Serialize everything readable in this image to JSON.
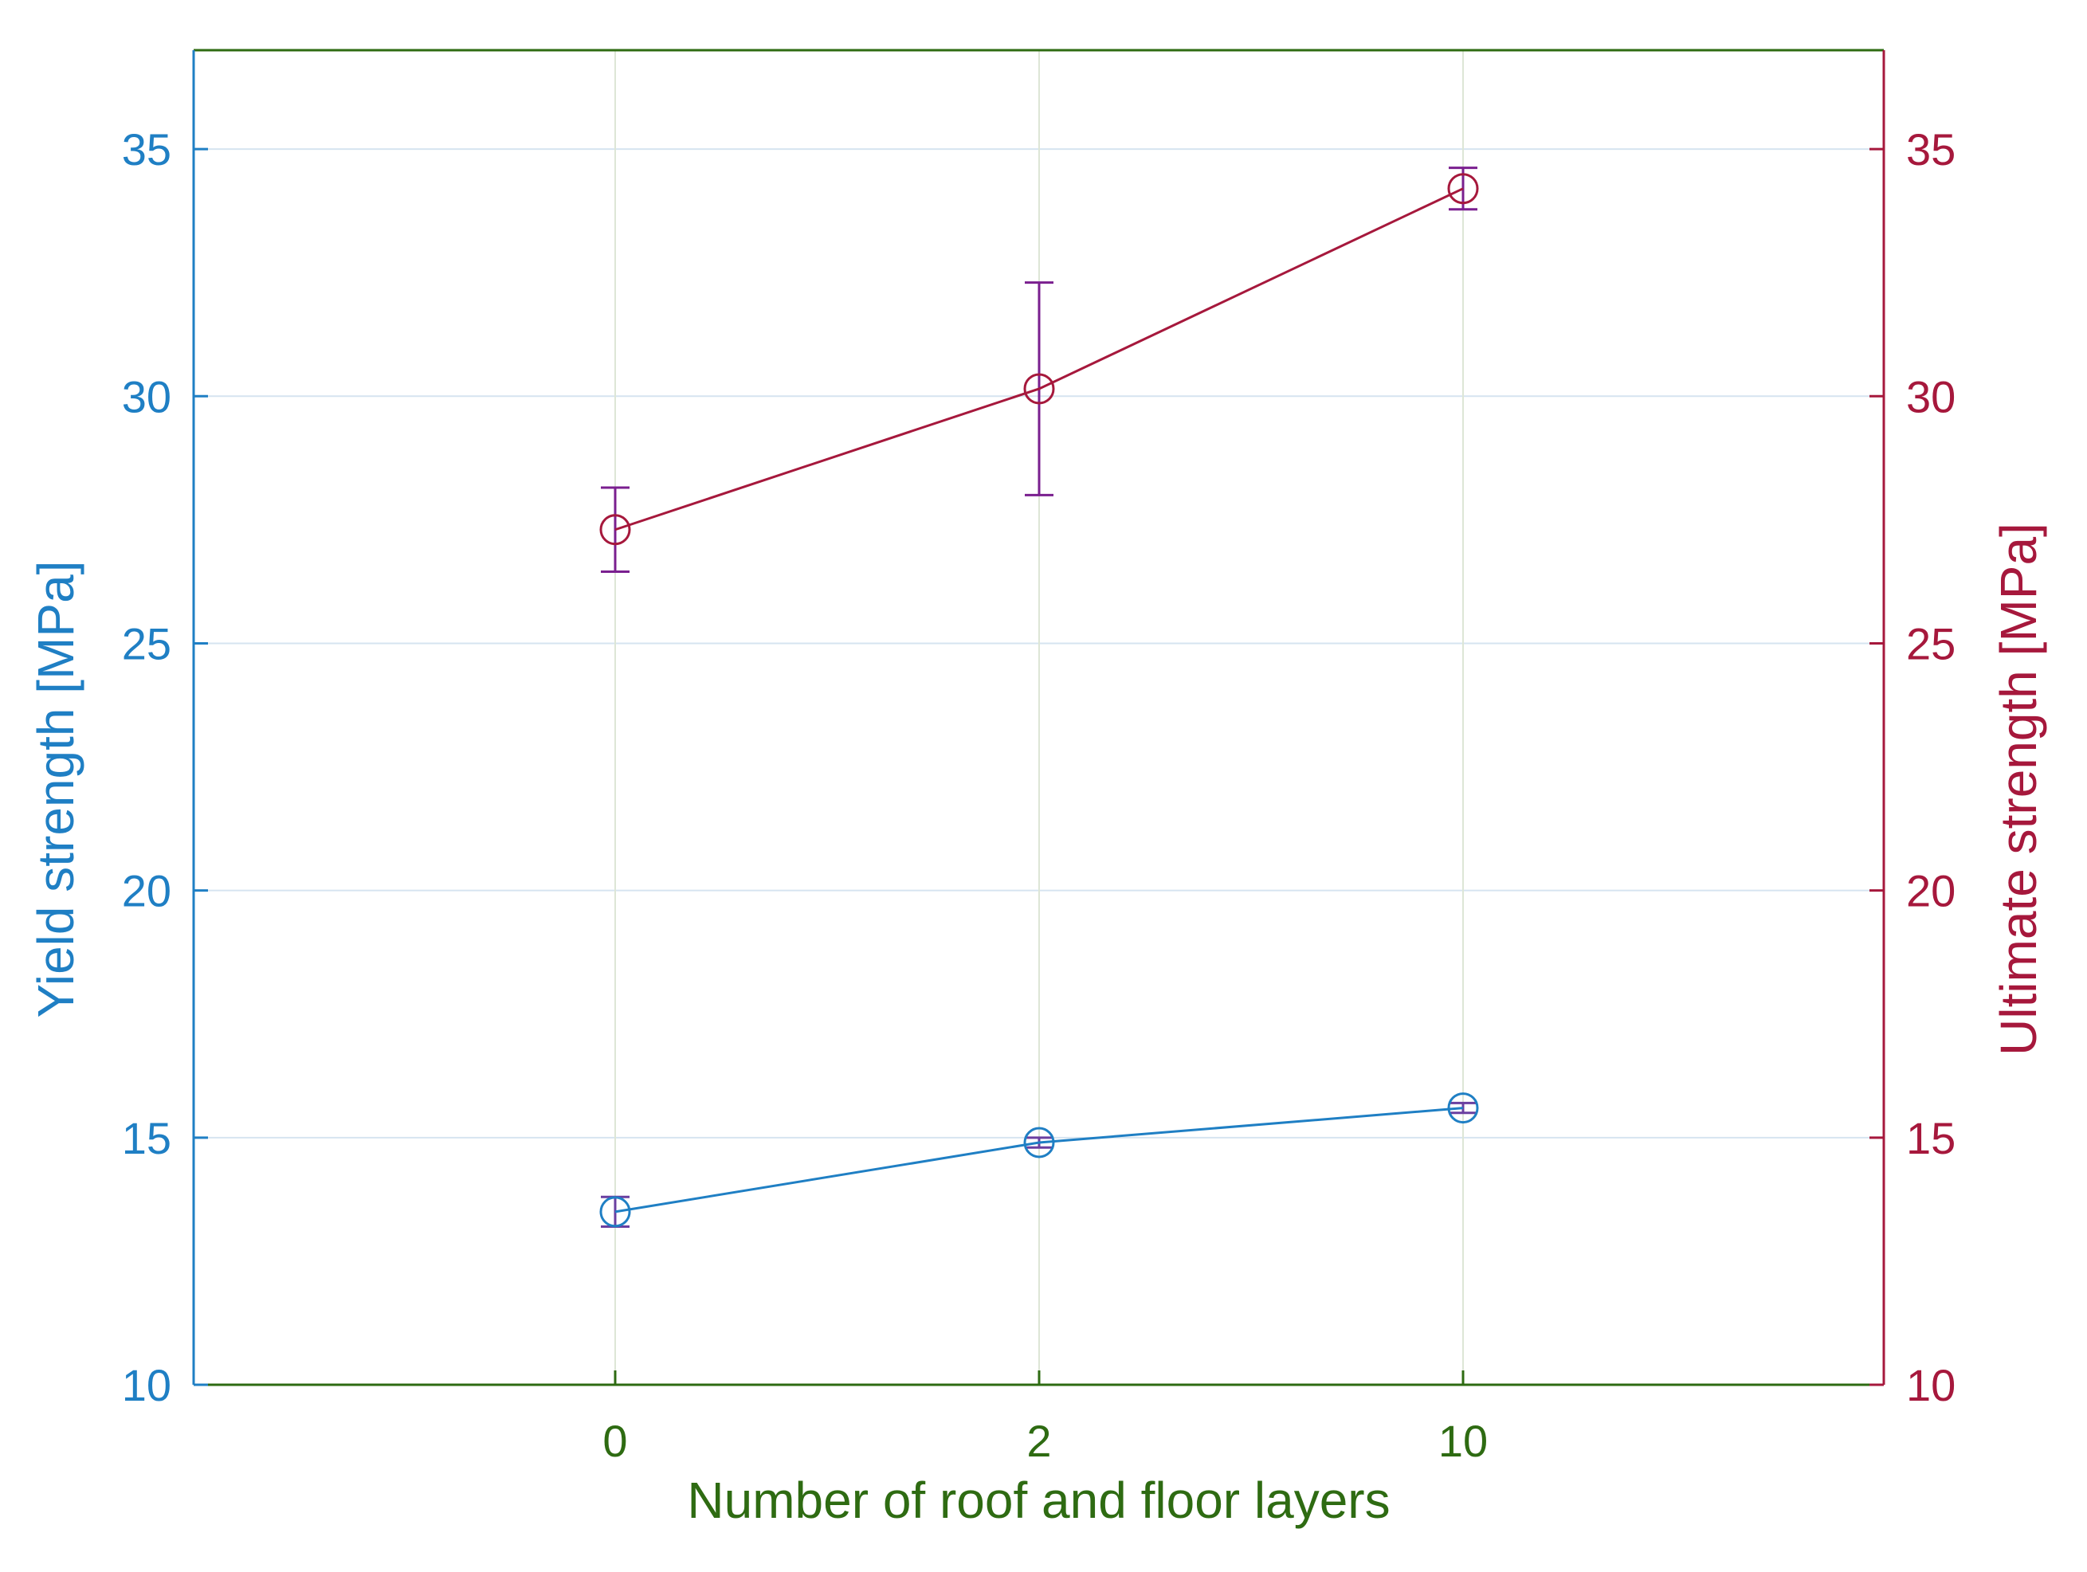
{
  "chart_data": {
    "type": "line",
    "title": "",
    "xlabel": "Number of roof and floor layers",
    "categories": [
      "0",
      "2",
      "10"
    ],
    "y_left": {
      "label": "Yield strength [MPa]",
      "range": [
        10,
        37
      ],
      "ticks": [
        10,
        15,
        20,
        25,
        30,
        35
      ],
      "color": "#1f7fc4"
    },
    "y_right": {
      "label": "Ultimate strength [MPa]",
      "range": [
        10,
        37
      ],
      "ticks": [
        10,
        15,
        20,
        25,
        30,
        35
      ],
      "color": "#a6183c"
    },
    "x_axis_color": "#2e6b12",
    "grid": true,
    "series": [
      {
        "axis": "left",
        "values": [
          13.5,
          14.9,
          15.6
        ],
        "error": [
          0.3,
          0.1,
          0.1
        ],
        "color": "#1f7fc4",
        "error_color": "#6a3fa0",
        "marker": "open-circle"
      },
      {
        "axis": "right",
        "values": [
          27.3,
          30.15,
          34.2
        ],
        "error": [
          0.85,
          2.15,
          0.42
        ],
        "color": "#a6183c",
        "error_color": "#7a1f8f",
        "marker": "open-circle"
      }
    ]
  }
}
